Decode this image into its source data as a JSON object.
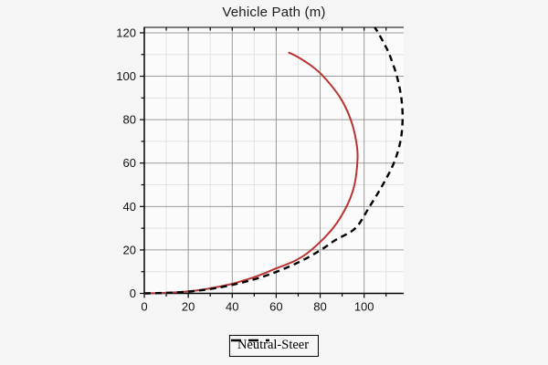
{
  "title": "Vehicle Path (m)",
  "colors": {
    "figure_bg": "#f5f5f5",
    "plot_bg": "#fbfbfb",
    "grid_major": "#9b9b9b",
    "grid_minor": "#e3e3e3",
    "axis": "#000000",
    "text": "#111111",
    "vehicle_path": "#b93333",
    "neutral_steer": "#000000"
  },
  "chart_data": {
    "type": "line",
    "title": "Vehicle Path (m)",
    "xlabel": "",
    "ylabel": "",
    "xlim": [
      0,
      118
    ],
    "ylim": [
      0,
      122.5
    ],
    "minor_step": 10,
    "major_step": 20,
    "x_tick_labels": [
      0,
      20,
      40,
      60,
      80,
      100
    ],
    "y_tick_labels": [
      0,
      20,
      40,
      60,
      80,
      100,
      120
    ],
    "grid": "on",
    "legend": {
      "position": "bottom-center",
      "entries": [
        {
          "label": "Neutral-Steer",
          "style": "dashed",
          "color": "#000000"
        }
      ]
    },
    "series": [
      {
        "name": "vehicle-path",
        "color": "#b93333",
        "style": "solid",
        "width": 2,
        "points": [
          [
            0,
            0
          ],
          [
            8,
            0.2
          ],
          [
            16,
            0.6
          ],
          [
            24,
            1.4
          ],
          [
            32,
            2.7
          ],
          [
            40,
            4.4
          ],
          [
            48,
            6.8
          ],
          [
            54,
            9
          ],
          [
            60,
            11.5
          ],
          [
            68.5,
            15
          ],
          [
            76,
            20
          ],
          [
            85.8,
            30
          ],
          [
            92,
            40
          ],
          [
            95.6,
            50
          ],
          [
            97,
            62
          ],
          [
            96.4,
            70
          ],
          [
            93.9,
            80
          ],
          [
            89.2,
            90
          ],
          [
            81.4,
            100
          ],
          [
            75.7,
            105
          ],
          [
            69.6,
            109
          ],
          [
            65.5,
            111
          ]
        ]
      },
      {
        "name": "neutral-steer",
        "color": "#000000",
        "style": "dashed",
        "width": 2.4,
        "points": [
          [
            0,
            0
          ],
          [
            8,
            0.15
          ],
          [
            16,
            0.5
          ],
          [
            24,
            1.2
          ],
          [
            32,
            2.3
          ],
          [
            40,
            3.9
          ],
          [
            48,
            5.9
          ],
          [
            56,
            8.4
          ],
          [
            64,
            11.5
          ],
          [
            72,
            15.2
          ],
          [
            80,
            19.8
          ],
          [
            87,
            24.6
          ],
          [
            96,
            30
          ],
          [
            102.5,
            40
          ],
          [
            108.5,
            50
          ],
          [
            113.5,
            60
          ],
          [
            116.5,
            70
          ],
          [
            117.5,
            80
          ],
          [
            116.9,
            90
          ],
          [
            114.9,
            100
          ],
          [
            111.5,
            110
          ],
          [
            109.1,
            115
          ],
          [
            106.4,
            120
          ],
          [
            104.8,
            122.5
          ]
        ]
      }
    ]
  }
}
